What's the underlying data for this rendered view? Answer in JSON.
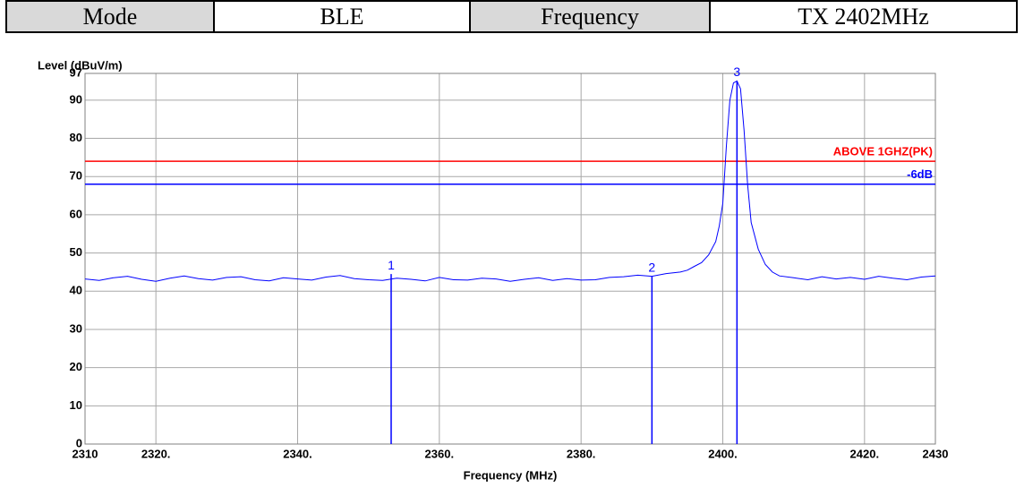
{
  "table": {
    "rows": [
      [
        "Mode",
        "BLE",
        "Frequency",
        "TX 2402MHz"
      ]
    ]
  },
  "chart_data": {
    "type": "line",
    "y_label": "Level (dBuV/m)",
    "x_label": "Frequency (MHz)",
    "color": "#0000ff",
    "x": [
      2310,
      2312,
      2314,
      2316,
      2318,
      2320,
      2322,
      2324,
      2326,
      2328,
      2330,
      2332,
      2334,
      2336,
      2338,
      2340,
      2342,
      2344,
      2346,
      2348,
      2350,
      2352,
      2354,
      2356,
      2358,
      2360,
      2362,
      2364,
      2366,
      2368,
      2370,
      2372,
      2374,
      2376,
      2378,
      2380,
      2382,
      2384,
      2386,
      2388,
      2390,
      2392,
      2394,
      2395,
      2396,
      2397,
      2398,
      2399,
      2399.5,
      2400,
      2400.5,
      2401,
      2401.5,
      2402,
      2402.5,
      2403,
      2403.5,
      2404,
      2405,
      2406,
      2407,
      2408,
      2410,
      2412,
      2414,
      2416,
      2418,
      2420,
      2422,
      2424,
      2426,
      2428,
      2430
    ],
    "values": [
      43.2,
      42.8,
      43.5,
      43.9,
      43.1,
      42.6,
      43.4,
      44.0,
      43.3,
      42.9,
      43.6,
      43.8,
      43.0,
      42.7,
      43.5,
      43.2,
      42.9,
      43.7,
      44.1,
      43.3,
      43.0,
      42.8,
      43.4,
      43.1,
      42.7,
      43.6,
      43.0,
      42.9,
      43.4,
      43.2,
      42.6,
      43.1,
      43.5,
      42.8,
      43.3,
      42.9,
      43.0,
      43.6,
      43.8,
      44.2,
      43.9,
      44.6,
      45.0,
      45.5,
      46.5,
      47.5,
      49.5,
      53,
      57,
      63,
      78,
      90,
      94.5,
      95,
      93,
      82,
      68,
      58,
      51,
      47,
      45,
      44,
      43.5,
      43.0,
      43.8,
      43.2,
      43.6,
      43.1,
      43.9,
      43.4,
      43.0,
      43.7,
      44.0
    ],
    "xlim": [
      2310,
      2430
    ],
    "xticks": [
      2310,
      {
        "value": 2320,
        "label": "2320."
      },
      {
        "value": 2340,
        "label": "2340."
      },
      {
        "value": 2360,
        "label": "2360."
      },
      {
        "value": 2380,
        "label": "2380."
      },
      {
        "value": 2400,
        "label": "2400."
      },
      {
        "value": 2420,
        "label": "2420."
      },
      2430
    ],
    "ylim": [
      0,
      97
    ],
    "yticks": [
      0,
      10,
      20,
      30,
      40,
      50,
      60,
      70,
      80,
      90,
      97
    ],
    "grid": true,
    "limit_lines": [
      {
        "label": "ABOVE 1GHZ(PK)",
        "value": 74,
        "color": "#ff0000"
      },
      {
        "label": "-6dB",
        "value": 68,
        "color": "#0000ff"
      }
    ],
    "markers": [
      {
        "label": "1",
        "x": 2353.2,
        "value": 44.5
      },
      {
        "label": "2",
        "x": 2390.0,
        "value": 43.9
      },
      {
        "label": "3",
        "x": 2402.0,
        "value": 95
      }
    ]
  }
}
